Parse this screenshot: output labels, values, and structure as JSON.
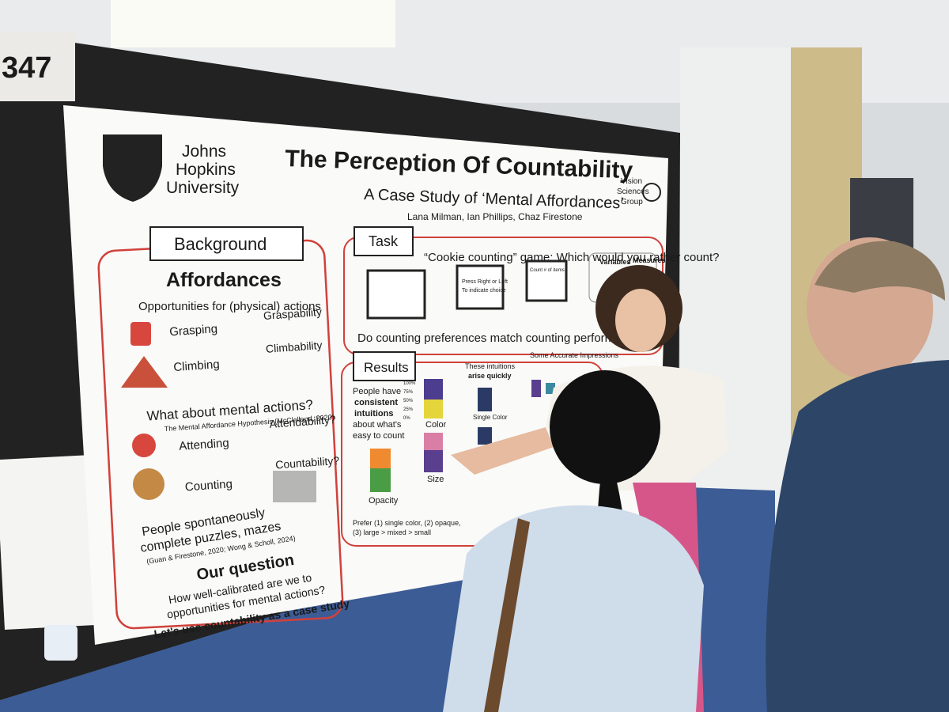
{
  "board_number": "347",
  "poster": {
    "logo": [
      "Johns",
      "Hopkins",
      "University"
    ],
    "title": "The Perception Of Countability",
    "subtitle": "A Case Study of ‘Mental Affordances’",
    "authors": "Lana Milman, Ian Phillips, Chaz Firestone",
    "group": [
      "Vision",
      "Sciences",
      "Group"
    ],
    "background": {
      "heading": "Background",
      "subheading": "Affordances",
      "intro": "Opportunities for (physical) actions",
      "rows": [
        {
          "action": "Grasping",
          "affordance": "Graspability"
        },
        {
          "action": "Climbing",
          "affordance": "Climbability"
        },
        {
          "action": "Attending",
          "affordance": "Attendability?"
        },
        {
          "action": "Counting",
          "affordance": "Countability?"
        }
      ],
      "question": "What about mental actions?",
      "citation": "The Mental Affordance Hypothesis (McClelland, 2020)",
      "puzzles": [
        "People spontaneously",
        "complete puzzles, mazes"
      ],
      "puzzles_citation": "(Guan & Firestone, 2020; Wong & Scholl, 2024)",
      "our_question": "Our question",
      "our_question_text": [
        "How well-calibrated are we to",
        "opportunities for mental actions?"
      ],
      "closing": "Let's use countability as a case study"
    },
    "task": {
      "heading": "Task",
      "game": "“Cookie counting” game: Which would you rather count?",
      "step2": [
        "Press Right or Left",
        "To indicate choice"
      ],
      "step3": "Count # of items",
      "variables": "Variables",
      "measures": "Measures",
      "question": "Do counting preferences match counting performance?"
    },
    "results": {
      "heading": "Results",
      "lead": [
        "People have",
        "consistent",
        "intuitions",
        "about what's",
        "easy to count"
      ],
      "axis_labels": [
        "100%",
        "75%",
        "50%",
        "25%",
        "0%"
      ],
      "labels": [
        "Color",
        "Size",
        "Opacity"
      ],
      "quick": [
        "These intuitions",
        "arise quickly"
      ],
      "single": "Single Color",
      "accurate": "Some Accurate Impressions",
      "prefer": [
        "Prefer (1) single color, (2) opaque,",
        "(3) large > mixed > small"
      ]
    }
  }
}
